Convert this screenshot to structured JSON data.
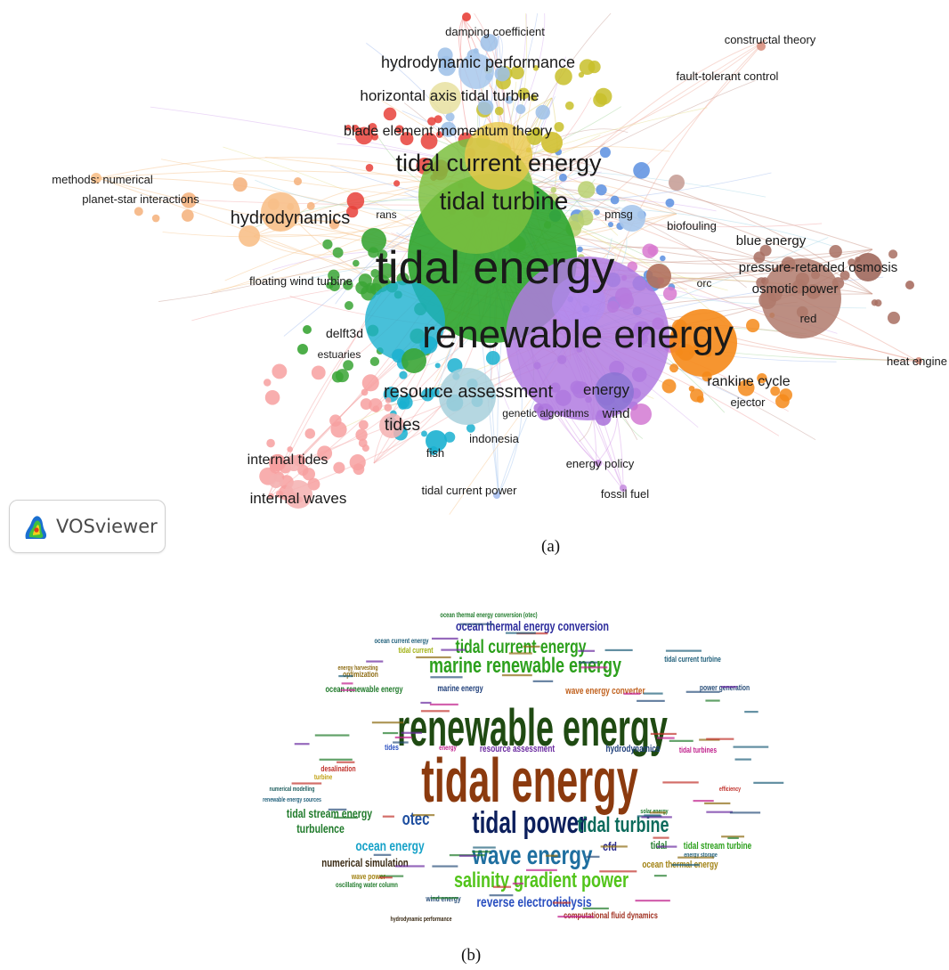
{
  "panel_a": {
    "caption": "(a)",
    "logo_text": "VOSviewer",
    "labels": [
      {
        "text": "damping coefficient",
        "size": 13,
        "w": 400
      },
      {
        "text": "constructal theory",
        "size": 13,
        "w": 400
      },
      {
        "text": "fault-tolerant control",
        "size": 13,
        "w": 400
      },
      {
        "text": "hydrodynamic performance",
        "size": 18,
        "w": 400
      },
      {
        "text": "horizontal axis tidal turbine",
        "size": 17,
        "w": 400
      },
      {
        "text": "blade element momentum theory",
        "size": 16,
        "w": 400
      },
      {
        "text": "tidal current energy",
        "size": 27,
        "w": 400
      },
      {
        "text": "methods: numerical",
        "size": 13,
        "w": 400
      },
      {
        "text": "planet-star interactions",
        "size": 13,
        "w": 400
      },
      {
        "text": "hydrodynamics",
        "size": 20,
        "w": 400
      },
      {
        "text": "rans",
        "size": 12,
        "w": 400
      },
      {
        "text": "tidal turbine",
        "size": 28,
        "w": 400
      },
      {
        "text": "pmsg",
        "size": 13,
        "w": 400
      },
      {
        "text": "biofouling",
        "size": 13,
        "w": 400
      },
      {
        "text": "blue energy",
        "size": 15,
        "w": 400
      },
      {
        "text": "tidal energy",
        "size": 52,
        "w": 400
      },
      {
        "text": "pressure-retarded osmosis",
        "size": 15,
        "w": 400
      },
      {
        "text": "floating wind turbine",
        "size": 13,
        "w": 400
      },
      {
        "text": "orc",
        "size": 12,
        "w": 400
      },
      {
        "text": "osmotic power",
        "size": 15,
        "w": 400
      },
      {
        "text": "red",
        "size": 13,
        "w": 400
      },
      {
        "text": "renewable energy",
        "size": 44,
        "w": 400
      },
      {
        "text": "delft3d",
        "size": 14,
        "w": 400
      },
      {
        "text": "estuaries",
        "size": 12,
        "w": 400
      },
      {
        "text": "heat engine",
        "size": 13,
        "w": 400
      },
      {
        "text": "rankine cycle",
        "size": 16,
        "w": 400
      },
      {
        "text": "resource assessment",
        "size": 20,
        "w": 400
      },
      {
        "text": "energy",
        "size": 17,
        "w": 400
      },
      {
        "text": "ejector",
        "size": 13,
        "w": 400
      },
      {
        "text": "tides",
        "size": 19,
        "w": 400
      },
      {
        "text": "genetic algorithms",
        "size": 12,
        "w": 400
      },
      {
        "text": "wind",
        "size": 15,
        "w": 400
      },
      {
        "text": "indonesia",
        "size": 13,
        "w": 400
      },
      {
        "text": "fish",
        "size": 13,
        "w": 400
      },
      {
        "text": "internal tides",
        "size": 16,
        "w": 400
      },
      {
        "text": "energy policy",
        "size": 13,
        "w": 400
      },
      {
        "text": "tidal current power",
        "size": 13,
        "w": 400
      },
      {
        "text": "internal waves",
        "size": 17,
        "w": 400
      },
      {
        "text": "fossil fuel",
        "size": 13,
        "w": 400
      }
    ]
  },
  "panel_b": {
    "caption": "(b)",
    "words": [
      {
        "text": "renewable energy",
        "color": "#1f4a12"
      },
      {
        "text": "tidal energy",
        "color": "#8b3a0e"
      },
      {
        "text": "marine renewable energy",
        "color": "#2ca01c"
      },
      {
        "text": "tidal current energy",
        "color": "#2ca01c"
      },
      {
        "text": "ocean thermal energy conversion",
        "color": "#2c2c9c"
      },
      {
        "text": "tidal power",
        "color": "#0c1f5c"
      },
      {
        "text": "wave energy",
        "color": "#1f6fa0"
      },
      {
        "text": "tidal turbine",
        "color": "#0c6b5c"
      },
      {
        "text": "salinity gradient power",
        "color": "#52c41a"
      },
      {
        "text": "reverse electrodialysis",
        "color": "#2a4fc0"
      },
      {
        "text": "tidal stream energy",
        "color": "#1f7a2a"
      },
      {
        "text": "otec",
        "color": "#1f4fa0"
      },
      {
        "text": "turbulence",
        "color": "#1f7a2a"
      },
      {
        "text": "ocean energy",
        "color": "#17a2c8"
      },
      {
        "text": "numerical simulation",
        "color": "#3a2a14"
      },
      {
        "text": "cfd",
        "color": "#2a2a8c"
      },
      {
        "text": "tidal",
        "color": "#1f7a2a"
      },
      {
        "text": "tidal stream turbine",
        "color": "#2ca01c"
      },
      {
        "text": "ocean thermal energy",
        "color": "#a08010"
      },
      {
        "text": "resource assessment",
        "color": "#6a2aa0"
      },
      {
        "text": "hydrodynamics",
        "color": "#1f3f7a"
      },
      {
        "text": "tidal turbines",
        "color": "#c0208c"
      },
      {
        "text": "wave energy converter",
        "color": "#c0601c"
      },
      {
        "text": "ocean renewable energy",
        "color": "#1f7a2a"
      },
      {
        "text": "marine energy",
        "color": "#1f3f7a"
      },
      {
        "text": "tidal current turbine",
        "color": "#1f5f7a"
      },
      {
        "text": "power generation",
        "color": "#2a4f7a"
      },
      {
        "text": "computational fluid dynamics",
        "color": "#a03020"
      },
      {
        "text": "wind energy",
        "color": "#2a4f7a"
      },
      {
        "text": "wave power",
        "color": "#a08010"
      },
      {
        "text": "oscillating water column",
        "color": "#1f7a2a"
      },
      {
        "text": "optimization",
        "color": "#8c6a10"
      },
      {
        "text": "energy harvesting",
        "color": "#8c6a10"
      },
      {
        "text": "ocean current energy",
        "color": "#1f5f7a"
      },
      {
        "text": "tidal current",
        "color": "#a0b010"
      },
      {
        "text": "desalination",
        "color": "#c0302a"
      },
      {
        "text": "numerical modelling",
        "color": "#1f5f5f"
      },
      {
        "text": "renewable energy sources",
        "color": "#1f5f7a"
      },
      {
        "text": "turbine",
        "color": "#c0a010"
      },
      {
        "text": "tides",
        "color": "#2a4fc0"
      },
      {
        "text": "energy",
        "color": "#c0208c"
      },
      {
        "text": "energy storage",
        "color": "#1f5f7a"
      },
      {
        "text": "solar energy",
        "color": "#1f7a2a"
      },
      {
        "text": "efficiency",
        "color": "#c0302a"
      },
      {
        "text": "hydrodynamic performance",
        "color": "#3a2a14"
      },
      {
        "text": "ocean thermal energy conversion (otec)",
        "color": "#1f7a2a"
      }
    ]
  }
}
